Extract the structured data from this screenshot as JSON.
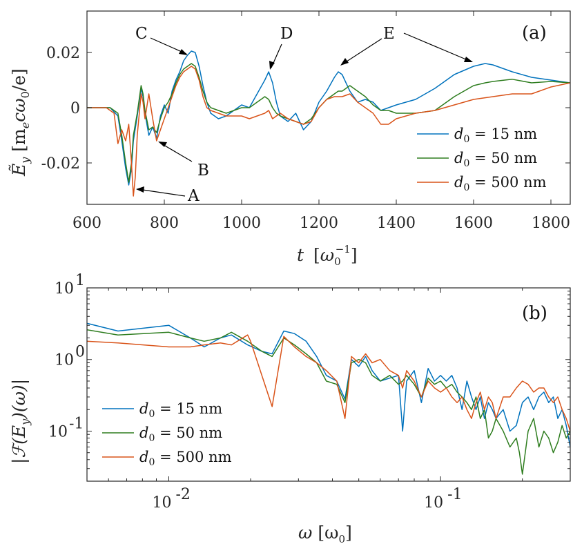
{
  "chart_data": [
    {
      "type": "line",
      "panel": "(a)",
      "xlabel": "t [ω0^-1]",
      "ylabel": "Ey [me c ω0 / e]",
      "xlim": [
        600,
        1850
      ],
      "ylim": [
        -0.035,
        0.035
      ],
      "xticks": [
        600,
        800,
        1000,
        1200,
        1400,
        1600,
        1800
      ],
      "xtick_labels": [
        "600",
        "800",
        "1000",
        "1200",
        "1400",
        "1600",
        "1800"
      ],
      "yticks": [
        -0.02,
        0,
        0.02
      ],
      "ytick_labels": [
        "-0.02",
        "0",
        "0.02"
      ],
      "legend_position": "right",
      "series": [
        {
          "name": "d0 = 15 nm",
          "color": "#0072BD",
          "x": [
            600,
            660,
            680,
            690,
            700,
            708,
            715,
            720,
            730,
            740,
            745,
            750,
            760,
            770,
            780,
            790,
            800,
            810,
            820,
            830,
            840,
            850,
            860,
            870,
            880,
            890,
            900,
            910,
            920,
            940,
            960,
            980,
            1000,
            1020,
            1040,
            1060,
            1070,
            1080,
            1090,
            1100,
            1120,
            1140,
            1160,
            1180,
            1200,
            1220,
            1240,
            1250,
            1260,
            1280,
            1300,
            1320,
            1340,
            1360,
            1380,
            1400,
            1450,
            1500,
            1550,
            1600,
            1630,
            1650,
            1700,
            1750,
            1800,
            1850
          ],
          "y": [
            0,
            0,
            -0.003,
            -0.012,
            -0.022,
            -0.028,
            -0.022,
            -0.012,
            -0.003,
            0.007,
            0.004,
            -0.002,
            -0.01,
            -0.007,
            -0.011,
            -0.003,
            0.001,
            -0.002,
            0.006,
            0.01,
            0.013,
            0.017,
            0.019,
            0.0205,
            0.02,
            0.015,
            0.008,
            0.002,
            -0.002,
            -0.004,
            -0.003,
            -0.001,
            0.001,
            0.0,
            0.005,
            0.01,
            0.013,
            0.009,
            0.002,
            -0.003,
            -0.005,
            -0.002,
            -0.008,
            -0.005,
            0.002,
            0.006,
            0.011,
            0.013,
            0.012,
            0.006,
            0.002,
            0.003,
            0.002,
            -0.001,
            0.0,
            0.001,
            0.003,
            0.007,
            0.012,
            0.015,
            0.016,
            0.0155,
            0.013,
            0.011,
            0.01,
            0.009
          ]
        },
        {
          "name": "d0 = 50 nm",
          "color": "#2E7D1F",
          "x": [
            600,
            660,
            680,
            690,
            700,
            708,
            715,
            720,
            730,
            740,
            745,
            750,
            760,
            770,
            780,
            790,
            800,
            810,
            820,
            830,
            840,
            850,
            860,
            870,
            880,
            890,
            900,
            910,
            920,
            940,
            960,
            980,
            1000,
            1020,
            1040,
            1060,
            1070,
            1080,
            1090,
            1100,
            1120,
            1140,
            1160,
            1180,
            1200,
            1220,
            1240,
            1250,
            1260,
            1280,
            1300,
            1320,
            1340,
            1360,
            1380,
            1400,
            1450,
            1500,
            1550,
            1600,
            1630,
            1650,
            1700,
            1750,
            1800,
            1850
          ],
          "y": [
            0,
            0,
            -0.002,
            -0.01,
            -0.02,
            -0.027,
            -0.02,
            -0.01,
            -0.002,
            0.008,
            0.005,
            -0.001,
            -0.008,
            -0.007,
            -0.009,
            -0.004,
            0.0,
            0.002,
            0.005,
            0.009,
            0.012,
            0.014,
            0.015,
            0.016,
            0.015,
            0.011,
            0.006,
            0.002,
            0.0,
            -0.001,
            -0.002,
            -0.001,
            0.0,
            0.0,
            0.002,
            0.004,
            0.003,
            0.0,
            -0.002,
            -0.003,
            -0.004,
            -0.005,
            -0.006,
            -0.004,
            0.0,
            0.003,
            0.005,
            0.006,
            0.006,
            0.008,
            0.006,
            0.004,
            0.001,
            -0.001,
            -0.001,
            -0.002,
            -0.002,
            -0.001,
            0.004,
            0.008,
            0.009,
            0.0095,
            0.0103,
            0.009,
            0.0095,
            0.009
          ]
        },
        {
          "name": "d0 = 500 nm",
          "color": "#D95319",
          "x": [
            600,
            650,
            670,
            680,
            690,
            700,
            708,
            715,
            720,
            725,
            730,
            740,
            745,
            750,
            760,
            770,
            780,
            790,
            800,
            810,
            820,
            830,
            840,
            850,
            860,
            870,
            880,
            890,
            900,
            910,
            920,
            940,
            960,
            980,
            1000,
            1020,
            1040,
            1060,
            1070,
            1080,
            1090,
            1100,
            1120,
            1140,
            1160,
            1180,
            1200,
            1220,
            1240,
            1260,
            1280,
            1300,
            1320,
            1340,
            1350,
            1360,
            1380,
            1400,
            1450,
            1500,
            1550,
            1600,
            1650,
            1700,
            1750,
            1800,
            1850
          ],
          "y": [
            0,
            0,
            -0.002,
            -0.013,
            -0.008,
            -0.012,
            -0.006,
            -0.02,
            -0.032,
            -0.025,
            -0.01,
            0.005,
            0.002,
            -0.004,
            0.005,
            -0.004,
            -0.012,
            -0.008,
            -0.004,
            0.0,
            0.004,
            0.008,
            0.011,
            0.013,
            0.014,
            0.015,
            0.014,
            0.01,
            0.004,
            0.0,
            -0.001,
            -0.002,
            -0.003,
            -0.003,
            -0.003,
            -0.004,
            -0.003,
            -0.002,
            -0.001,
            -0.004,
            -0.003,
            -0.002,
            -0.004,
            -0.005,
            -0.006,
            -0.005,
            0.0,
            0.003,
            0.004,
            0.004,
            0.005,
            0.002,
            0.0,
            -0.002,
            -0.004,
            -0.006,
            -0.006,
            -0.004,
            -0.002,
            -0.001,
            0.001,
            0.003,
            0.004,
            0.005,
            0.005,
            0.0075,
            0.009
          ]
        }
      ],
      "annotations": [
        "A",
        "B",
        "C",
        "D",
        "E"
      ]
    },
    {
      "type": "line",
      "panel": "(b)",
      "xlabel": "ω [ω0]",
      "ylabel": "|F(Ey)(ω)|",
      "xscale": "log",
      "yscale": "log",
      "xlim": [
        0.005,
        0.3
      ],
      "ylim": [
        0.02,
        10
      ],
      "xticks": [
        0.01,
        0.1
      ],
      "xtick_labels": [
        "10",
        "10"
      ],
      "xtick_exponents": [
        "-2",
        "-1"
      ],
      "yticks": [
        0.1,
        1,
        10
      ],
      "ytick_labels": [
        "10",
        "10",
        "10"
      ],
      "ytick_exponents": [
        "-1",
        "0",
        "1"
      ],
      "legend_position": "bottom-left",
      "series": [
        {
          "name": "d0 = 15 nm",
          "color": "#0072BD",
          "x": [
            0.005,
            0.0065,
            0.01,
            0.012,
            0.0135,
            0.0155,
            0.017,
            0.0195,
            0.022,
            0.024,
            0.0265,
            0.029,
            0.032,
            0.035,
            0.038,
            0.0415,
            0.0445,
            0.047,
            0.05,
            0.053,
            0.056,
            0.06,
            0.065,
            0.07,
            0.0725,
            0.075,
            0.08,
            0.085,
            0.09,
            0.095,
            0.1,
            0.105,
            0.11,
            0.115,
            0.12,
            0.125,
            0.13,
            0.135,
            0.14,
            0.145,
            0.15,
            0.155,
            0.16,
            0.17,
            0.18,
            0.19,
            0.2,
            0.21,
            0.22,
            0.23,
            0.24,
            0.25,
            0.26,
            0.27,
            0.28,
            0.29,
            0.3
          ],
          "y": [
            3.2,
            2.5,
            3.0,
            2.0,
            1.5,
            2.0,
            2.2,
            1.6,
            1.3,
            1.2,
            2.5,
            2.3,
            1.8,
            1.1,
            0.6,
            0.5,
            0.28,
            1.0,
            0.8,
            1.1,
            0.7,
            0.5,
            0.55,
            0.6,
            0.1,
            0.5,
            0.7,
            0.25,
            0.75,
            0.5,
            0.6,
            0.5,
            0.6,
            0.4,
            0.2,
            0.5,
            0.3,
            0.2,
            0.3,
            0.15,
            0.25,
            0.2,
            0.15,
            0.2,
            0.1,
            0.12,
            0.25,
            0.3,
            0.2,
            0.3,
            0.35,
            0.25,
            0.3,
            0.15,
            0.2,
            0.12,
            0.06
          ]
        },
        {
          "name": "d0 = 50 nm",
          "color": "#2E7D1F",
          "x": [
            0.005,
            0.0065,
            0.01,
            0.012,
            0.0135,
            0.0155,
            0.017,
            0.0195,
            0.022,
            0.024,
            0.0265,
            0.029,
            0.032,
            0.035,
            0.038,
            0.0415,
            0.0445,
            0.047,
            0.05,
            0.053,
            0.056,
            0.06,
            0.065,
            0.07,
            0.0725,
            0.075,
            0.08,
            0.085,
            0.09,
            0.095,
            0.1,
            0.105,
            0.11,
            0.115,
            0.12,
            0.125,
            0.13,
            0.135,
            0.14,
            0.145,
            0.15,
            0.155,
            0.16,
            0.17,
            0.18,
            0.19,
            0.195,
            0.2,
            0.21,
            0.22,
            0.23,
            0.24,
            0.25,
            0.26,
            0.27,
            0.28,
            0.29,
            0.3
          ],
          "y": [
            2.6,
            2.2,
            2.4,
            2.0,
            1.8,
            2.0,
            2.4,
            1.8,
            1.3,
            1.1,
            2.0,
            1.6,
            1.2,
            0.9,
            0.5,
            0.45,
            0.25,
            0.9,
            1.0,
            0.9,
            0.6,
            0.5,
            0.6,
            0.45,
            0.5,
            0.6,
            0.45,
            0.3,
            0.55,
            0.45,
            0.5,
            0.4,
            0.45,
            0.35,
            0.3,
            0.25,
            0.2,
            0.3,
            0.15,
            0.2,
            0.08,
            0.1,
            0.15,
            0.1,
            0.06,
            0.08,
            0.05,
            0.025,
            0.1,
            0.15,
            0.06,
            0.1,
            0.08,
            0.05,
            0.07,
            0.12,
            0.08,
            0.1
          ]
        },
        {
          "name": "d0 = 500 nm",
          "color": "#D95319",
          "x": [
            0.005,
            0.0065,
            0.01,
            0.012,
            0.0135,
            0.0155,
            0.017,
            0.0195,
            0.02,
            0.024,
            0.0265,
            0.029,
            0.032,
            0.035,
            0.038,
            0.0415,
            0.0445,
            0.047,
            0.05,
            0.053,
            0.056,
            0.06,
            0.065,
            0.07,
            0.0725,
            0.075,
            0.08,
            0.085,
            0.09,
            0.095,
            0.1,
            0.105,
            0.11,
            0.115,
            0.12,
            0.125,
            0.13,
            0.135,
            0.14,
            0.145,
            0.15,
            0.155,
            0.16,
            0.17,
            0.18,
            0.19,
            0.2,
            0.21,
            0.22,
            0.23,
            0.24,
            0.25,
            0.26,
            0.27,
            0.28,
            0.29,
            0.3
          ],
          "y": [
            1.8,
            1.7,
            1.5,
            1.5,
            1.6,
            1.7,
            1.6,
            2.2,
            1.8,
            0.22,
            2.1,
            1.5,
            1.1,
            0.9,
            0.7,
            0.5,
            0.15,
            1.1,
            0.9,
            1.2,
            0.9,
            1.0,
            0.7,
            0.6,
            0.4,
            0.7,
            0.5,
            0.3,
            0.5,
            0.4,
            0.35,
            0.4,
            0.3,
            0.25,
            0.3,
            0.2,
            0.15,
            0.25,
            0.35,
            0.2,
            0.3,
            0.25,
            0.15,
            0.3,
            0.3,
            0.4,
            0.5,
            0.45,
            0.35,
            0.4,
            0.4,
            0.3,
            0.25,
            0.3,
            0.2,
            0.15,
            0.1
          ]
        }
      ]
    }
  ],
  "panels": {
    "a": {
      "tag": "(a)",
      "xlabel_main": "t",
      "xlabel_unit_open": "[",
      "xlabel_unit_sym": "ω",
      "xlabel_unit_sub": "0",
      "xlabel_unit_sup": "−1",
      "xlabel_unit_close": "]",
      "ylabel_main": "Ẽ",
      "ylabel_sub": "y",
      "ylabel_unit": "[m",
      "ylabel_unit_sub": "e",
      "ylabel_unit_rest": "cω",
      "ylabel_unit_sub2": "0",
      "ylabel_unit_end": "/e]",
      "annotations": {
        "A": "A",
        "B": "B",
        "C": "C",
        "D": "D",
        "E": "E"
      },
      "legend": [
        {
          "main": "d",
          "sub": "0",
          "eq": " = 15 nm"
        },
        {
          "main": "d",
          "sub": "0",
          "eq": " = 50 nm"
        },
        {
          "main": "d",
          "sub": "0",
          "eq": " = 500 nm"
        }
      ]
    },
    "b": {
      "tag": "(b)",
      "xlabel_main": "ω",
      "xlabel_unit_open": "[ω",
      "xlabel_unit_sub": "0",
      "xlabel_unit_close": "]",
      "ylabel_text": "|ℱ(E",
      "ylabel_sub": "y",
      "ylabel_end": ")(ω)|",
      "legend": [
        {
          "main": "d",
          "sub": "0",
          "eq": " = 15 nm"
        },
        {
          "main": "d",
          "sub": "0",
          "eq": " = 50 nm"
        },
        {
          "main": "d",
          "sub": "0",
          "eq": " = 500 nm"
        }
      ]
    }
  }
}
